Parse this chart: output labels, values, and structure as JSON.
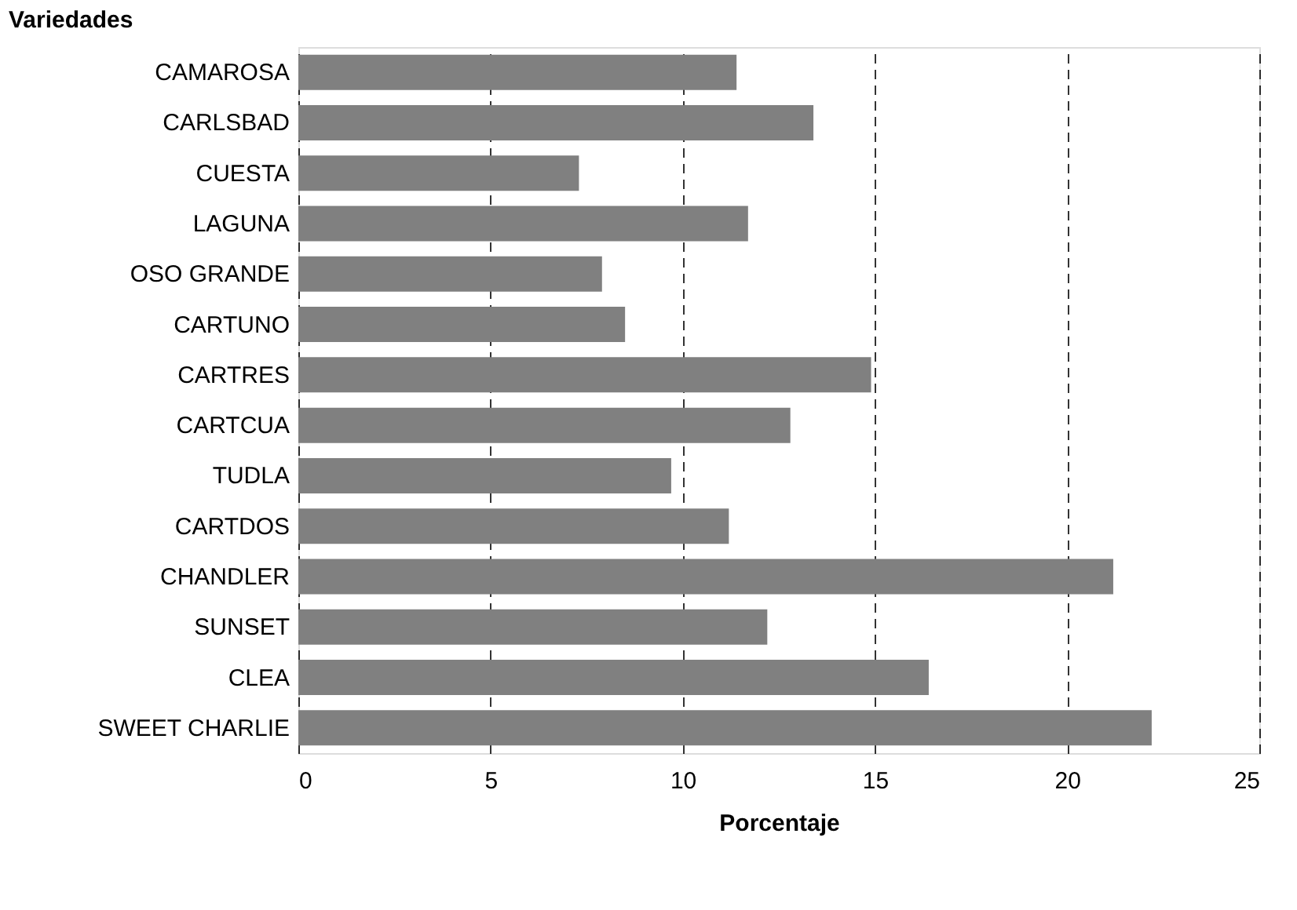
{
  "chart_data": {
    "type": "bar",
    "orientation": "horizontal",
    "xlabel": "Porcentaje",
    "ylabel": "Variedades",
    "categories": [
      "CAMAROSA",
      "CARLSBAD",
      "CUESTA",
      "LAGUNA",
      "OSO GRANDE",
      "CARTUNO",
      "CARTRES",
      "CARTCUA",
      "TUDLA",
      "CARTDOS",
      "CHANDLER",
      "SUNSET",
      "CLEA",
      "SWEET CHARLIE"
    ],
    "values": [
      11.4,
      13.4,
      7.3,
      11.7,
      7.9,
      8.5,
      14.9,
      12.8,
      9.7,
      11.2,
      21.2,
      12.2,
      16.4,
      22.2
    ],
    "color": "#808080",
    "xlim": [
      0,
      25
    ],
    "xticks": [
      0,
      5,
      10,
      15,
      20,
      25
    ],
    "grid": "x",
    "line_style": "dashed"
  }
}
